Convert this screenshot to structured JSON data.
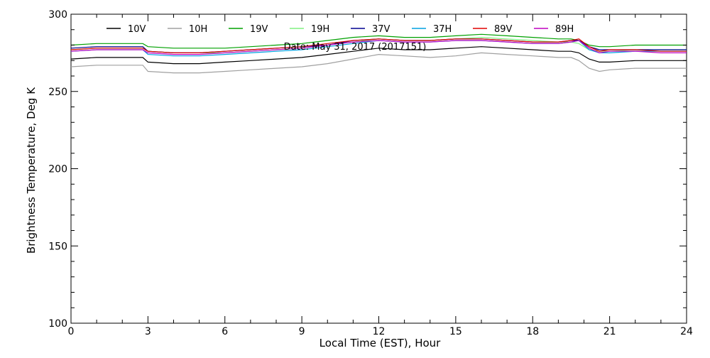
{
  "chart_data": {
    "type": "line",
    "annotation": "Date: May 31, 2017 (2017151)",
    "xlabel": "Local Time (EST), Hour",
    "ylabel": "Brightness Temperature, Deg  K",
    "xlim": [
      0,
      24
    ],
    "ylim": [
      100,
      300
    ],
    "xticks": [
      0,
      3,
      6,
      9,
      12,
      15,
      18,
      21,
      24
    ],
    "yticks": [
      100,
      150,
      200,
      250,
      300
    ],
    "legend_position": "top",
    "grid": false,
    "x": [
      0,
      1,
      2,
      2.8,
      3,
      4,
      5,
      6,
      7,
      8,
      9,
      10,
      11,
      12,
      13,
      14,
      15,
      16,
      17,
      18,
      19,
      19.5,
      19.8,
      20.2,
      20.6,
      21,
      22,
      23,
      24
    ],
    "series": [
      {
        "name": "10V",
        "color": "#000000",
        "values": [
          271,
          272,
          272,
          272,
          269,
          268,
          268,
          269,
          270,
          271,
          272,
          274,
          276,
          278,
          277,
          277,
          278,
          279,
          278,
          277,
          276,
          276,
          275,
          271,
          269,
          269,
          270,
          270,
          270
        ]
      },
      {
        "name": "10H",
        "color": "#a0a0a0",
        "values": [
          266,
          267,
          267,
          267,
          263,
          262,
          262,
          263,
          264,
          265,
          266,
          268,
          271,
          274,
          273,
          272,
          273,
          275,
          274,
          273,
          272,
          272,
          270,
          265,
          263,
          264,
          265,
          265,
          265
        ]
      },
      {
        "name": "19V",
        "color": "#00a000",
        "values": [
          280,
          281,
          281,
          281,
          279,
          278,
          278,
          278,
          279,
          280,
          281,
          283,
          285,
          286,
          285,
          285,
          286,
          287,
          286,
          285,
          284,
          284,
          283,
          280,
          279,
          279,
          280,
          280,
          280
        ]
      },
      {
        "name": "19H",
        "color": "#80f080",
        "values": [
          277,
          278,
          278,
          278,
          276,
          275,
          275,
          275,
          276,
          277,
          278,
          280,
          282,
          284,
          283,
          283,
          284,
          285,
          284,
          283,
          282,
          282,
          281,
          277,
          276,
          276,
          277,
          277,
          277
        ]
      },
      {
        "name": "37V",
        "color": "#000090",
        "values": [
          278,
          279,
          279,
          279,
          276,
          275,
          275,
          276,
          277,
          278,
          279,
          280,
          283,
          284,
          283,
          283,
          284,
          284,
          283,
          282,
          282,
          283,
          283,
          279,
          277,
          277,
          277,
          277,
          277
        ]
      },
      {
        "name": "37H",
        "color": "#00a0e0",
        "values": [
          276,
          277,
          277,
          277,
          274,
          273,
          273,
          274,
          275,
          276,
          277,
          279,
          281,
          283,
          282,
          282,
          283,
          283,
          282,
          281,
          281,
          282,
          283,
          277,
          275,
          275,
          276,
          276,
          276
        ]
      },
      {
        "name": "89V",
        "color": "#e00000",
        "values": [
          277,
          278,
          278,
          278,
          276,
          275,
          275,
          276,
          277,
          278,
          279,
          281,
          283,
          284,
          283,
          283,
          284,
          284,
          283,
          282,
          282,
          283,
          284,
          279,
          276,
          277,
          277,
          276,
          276
        ]
      },
      {
        "name": "89H",
        "color": "#c000c0",
        "values": [
          276,
          277,
          277,
          277,
          275,
          274,
          274,
          275,
          276,
          277,
          278,
          280,
          282,
          283,
          282,
          282,
          283,
          283,
          282,
          281,
          281,
          282,
          283,
          278,
          275,
          276,
          276,
          275,
          275
        ]
      }
    ]
  }
}
